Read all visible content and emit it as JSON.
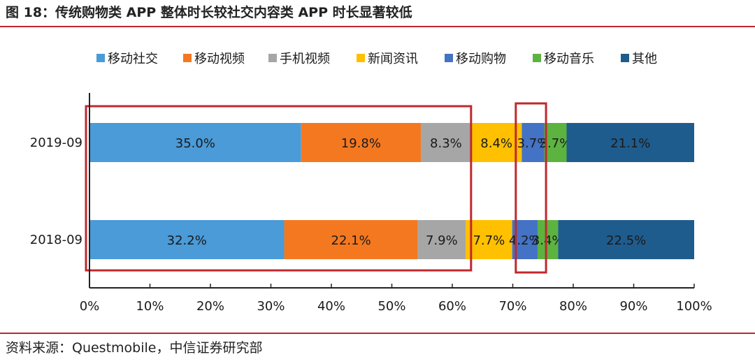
{
  "figure_title": "图 18：传统购物类 APP 整体时长较社交内容类 APP 时长显著较低",
  "source": "资料来源：Questmobile，中信证券研究部",
  "chart_data": {
    "type": "bar",
    "orientation": "horizontal",
    "stacked": true,
    "percent_stacked": true,
    "categories": [
      "2019-09",
      "2018-09"
    ],
    "series": [
      {
        "name": "移动社交",
        "color": "#4a9bd8",
        "values": [
          35.0,
          32.2
        ],
        "labels": [
          "35.0%",
          "32.2%"
        ]
      },
      {
        "name": "移动视频",
        "color": "#f47820",
        "values": [
          19.8,
          22.1
        ],
        "labels": [
          "19.8%",
          "22.1%"
        ]
      },
      {
        "name": "手机视频",
        "color": "#a6a6a6",
        "values": [
          8.3,
          7.9
        ],
        "labels": [
          "8.3%",
          "7.9%"
        ]
      },
      {
        "name": "新闻资讯",
        "color": "#ffc000",
        "values": [
          8.4,
          7.7
        ],
        "labels": [
          "8.4%",
          "7.7%"
        ]
      },
      {
        "name": "移动购物",
        "color": "#4472c4",
        "values": [
          3.7,
          4.2
        ],
        "labels": [
          "3.7%",
          "4.2%"
        ]
      },
      {
        "name": "移动音乐",
        "color": "#5cb340",
        "values": [
          3.7,
          3.4
        ],
        "labels": [
          "3.7%",
          "3.4%"
        ]
      },
      {
        "name": "其他",
        "color": "#1f5c8e",
        "values": [
          21.1,
          22.5
        ],
        "labels": [
          "21.1%",
          "22.5%"
        ]
      }
    ],
    "xaxis": {
      "min": 0,
      "max": 100,
      "ticks": [
        "0%",
        "10%",
        "20%",
        "30%",
        "40%",
        "50%",
        "60%",
        "70%",
        "80%",
        "90%",
        "100%"
      ]
    },
    "legend_position": "top",
    "grid": false,
    "highlight_boxes": [
      {
        "from": 0,
        "to": 63.1
      },
      {
        "from": 70.5,
        "to": 75.5
      }
    ],
    "highlight_color": "#c0282d"
  }
}
